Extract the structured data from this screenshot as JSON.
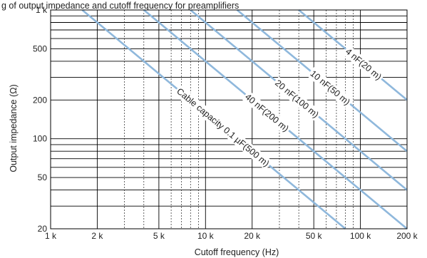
{
  "caption": "g of output impedance and cutoff frequency for preamplifiers",
  "chart_data": {
    "type": "line",
    "title": "",
    "xlabel": "Cutoff frequency (Hz)",
    "ylabel": "Output impedance (Ω)",
    "x_scale": "log",
    "y_scale": "log",
    "xlim": [
      1000,
      200000
    ],
    "ylim": [
      20,
      1000
    ],
    "grid": true,
    "x_ticks": [
      {
        "value": 1000,
        "label": "1 k"
      },
      {
        "value": 2000,
        "label": "2 k"
      },
      {
        "value": 5000,
        "label": "5 k"
      },
      {
        "value": 10000,
        "label": "10 k"
      },
      {
        "value": 20000,
        "label": "20 k"
      },
      {
        "value": 50000,
        "label": "50 k"
      },
      {
        "value": 100000,
        "label": "100 k"
      },
      {
        "value": 200000,
        "label": "200 k"
      }
    ],
    "y_ticks": [
      {
        "value": 20,
        "label": "20"
      },
      {
        "value": 50,
        "label": "50"
      },
      {
        "value": 100,
        "label": "100"
      },
      {
        "value": 200,
        "label": "200"
      },
      {
        "value": 500,
        "label": "500"
      },
      {
        "value": 1000,
        "label": "1 k"
      }
    ],
    "series": [
      {
        "name": "Cable capacity 0.1 µF(500 m)",
        "x": [
          1600,
          80000
        ],
        "y": [
          1000,
          20
        ]
      },
      {
        "name": "40 nF(200 m)",
        "x": [
          4000,
          200000
        ],
        "y": [
          1000,
          20
        ]
      },
      {
        "name": "20 nF(100 m)",
        "x": [
          8000,
          200000
        ],
        "y": [
          1000,
          40
        ]
      },
      {
        "name": "10 nF(50 m)",
        "x": [
          16000,
          200000
        ],
        "y": [
          1000,
          80
        ]
      },
      {
        "name": "4 nF(20 m)",
        "x": [
          40000,
          200000
        ],
        "y": [
          1000,
          200
        ]
      }
    ],
    "line_color": "#8fb8dc"
  }
}
